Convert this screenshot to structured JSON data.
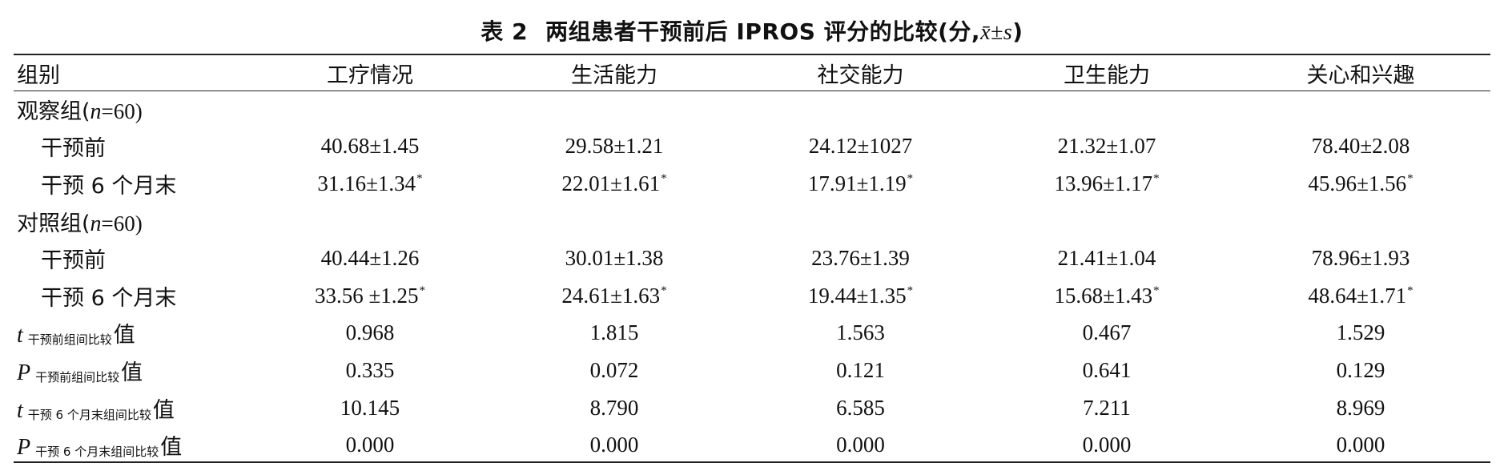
{
  "caption": {
    "label": "表 2",
    "title": "两组患者干预前后 IPROS 评分的比较(分,",
    "stat": "x̄±s",
    "close": ")"
  },
  "columns": [
    "组别",
    "工疗情况",
    "生活能力",
    "社交能力",
    "卫生能力",
    "关心和兴趣"
  ],
  "groups": {
    "observation": {
      "label_prefix": "观察组(",
      "n_symbol": "n",
      "label_suffix": "=60)",
      "before": {
        "label": "干预前",
        "values": [
          "40.68±1.45",
          "29.58±1.21",
          "24.12±1027",
          "21.32±1.07",
          "78.40±2.08"
        ]
      },
      "after": {
        "label": "干预 6 个月末",
        "values": [
          "31.16±1.34",
          "22.01±1.61",
          "17.91±1.19",
          "13.96±1.17",
          "45.96±1.56"
        ],
        "marker": "*"
      }
    },
    "control": {
      "label_prefix": "对照组(",
      "n_symbol": "n",
      "label_suffix": "=60)",
      "before": {
        "label": "干预前",
        "values": [
          "40.44±1.26",
          "30.01±1.38",
          "23.76±1.39",
          "21.41±1.04",
          "78.96±1.93"
        ]
      },
      "after": {
        "label": "干预 6 个月末",
        "values": [
          "33.56 ±1.25",
          "24.61±1.63",
          "19.44±1.35",
          "15.68±1.43",
          "48.64±1.71"
        ],
        "marker": "*"
      }
    }
  },
  "stats": [
    {
      "symbol": "t",
      "subscript": "干预前组间比较",
      "tail": "值",
      "values": [
        "0.968",
        "1.815",
        "1.563",
        "0.467",
        "1.529"
      ]
    },
    {
      "symbol": "P",
      "subscript": "干预前组间比较",
      "tail": "值",
      "values": [
        "0.335",
        "0.072",
        "0.121",
        "0.641",
        "0.129"
      ]
    },
    {
      "symbol": "t",
      "subscript": "干预 6 个月末组间比较",
      "tail": "值",
      "values": [
        "10.145",
        "8.790",
        "6.585",
        "7.211",
        "8.969"
      ]
    },
    {
      "symbol": "P",
      "subscript": "干预 6 个月末组间比较",
      "tail": "值",
      "values": [
        "0.000",
        "0.000",
        "0.000",
        "0.000",
        "0.000"
      ]
    }
  ]
}
